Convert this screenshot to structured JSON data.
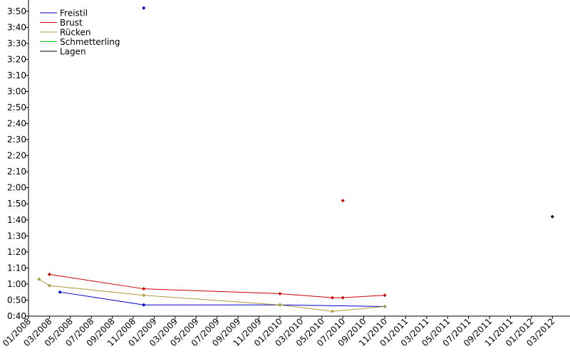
{
  "chart_data": {
    "type": "line",
    "x_format": "YYYY-MM",
    "xlim": [
      "2008-01",
      "2012-04"
    ],
    "xticks": [
      {
        "value": "2008-01",
        "label": "01/2008"
      },
      {
        "value": "2008-03",
        "label": "03/2008"
      },
      {
        "value": "2008-05",
        "label": "05/2008"
      },
      {
        "value": "2008-07",
        "label": "07/2008"
      },
      {
        "value": "2008-09",
        "label": "09/2008"
      },
      {
        "value": "2008-11",
        "label": "11/2008"
      },
      {
        "value": "2009-01",
        "label": "01/2009"
      },
      {
        "value": "2009-03",
        "label": "03/2009"
      },
      {
        "value": "2009-05",
        "label": "05/2009"
      },
      {
        "value": "2009-07",
        "label": "07/2009"
      },
      {
        "value": "2009-09",
        "label": "09/2009"
      },
      {
        "value": "2009-11",
        "label": "11/2009"
      },
      {
        "value": "2010-01",
        "label": "01/2010"
      },
      {
        "value": "2010-03",
        "label": "03/2010"
      },
      {
        "value": "2010-05",
        "label": "05/2010"
      },
      {
        "value": "2010-07",
        "label": "07/2010"
      },
      {
        "value": "2010-09",
        "label": "09/2010"
      },
      {
        "value": "2010-11",
        "label": "11/2010"
      },
      {
        "value": "2011-01",
        "label": "01/2011"
      },
      {
        "value": "2011-03",
        "label": "03/2011"
      },
      {
        "value": "2011-05",
        "label": "05/2011"
      },
      {
        "value": "2011-07",
        "label": "07/2011"
      },
      {
        "value": "2011-09",
        "label": "09/2011"
      },
      {
        "value": "2011-11",
        "label": "11/2011"
      },
      {
        "value": "2012-01",
        "label": "01/2012"
      },
      {
        "value": "2012-03",
        "label": "03/2012"
      }
    ],
    "ylim": [
      40,
      237
    ],
    "yticks": [
      {
        "value": 40,
        "label": "0:40"
      },
      {
        "value": 50,
        "label": "0:50"
      },
      {
        "value": 60,
        "label": "1:00"
      },
      {
        "value": 70,
        "label": "1:10"
      },
      {
        "value": 80,
        "label": "1:20"
      },
      {
        "value": 90,
        "label": "1:30"
      },
      {
        "value": 100,
        "label": "1:40"
      },
      {
        "value": 110,
        "label": "1:50"
      },
      {
        "value": 120,
        "label": "2:00"
      },
      {
        "value": 130,
        "label": "2:10"
      },
      {
        "value": 140,
        "label": "2:20"
      },
      {
        "value": 150,
        "label": "2:30"
      },
      {
        "value": 160,
        "label": "2:40"
      },
      {
        "value": 170,
        "label": "2:50"
      },
      {
        "value": 180,
        "label": "3:00"
      },
      {
        "value": 190,
        "label": "3:10"
      },
      {
        "value": 200,
        "label": "3:20"
      },
      {
        "value": 210,
        "label": "3:30"
      },
      {
        "value": 220,
        "label": "3:40"
      },
      {
        "value": 230,
        "label": "3:50"
      }
    ],
    "legend": "top-left",
    "series": [
      {
        "name": "Freistil",
        "color": "#0000cc",
        "x": [
          "2008-04",
          "2008-12",
          "2010-01",
          "2010-11"
        ],
        "values": [
          55,
          47,
          47,
          46
        ],
        "points": {
          "x": [
            "2008-12"
          ],
          "values": [
            232
          ]
        }
      },
      {
        "name": "Brust",
        "color": "#cc0000",
        "x": [
          "2008-03",
          "2008-12",
          "2010-01",
          "2010-06",
          "2010-07",
          "2010-11"
        ],
        "values": [
          66,
          57,
          54,
          51.5,
          51.5,
          53
        ],
        "points": {
          "x": [
            "2010-07"
          ],
          "values": [
            112
          ]
        }
      },
      {
        "name": "Rücken",
        "color": "#b09a3c",
        "x": [
          "2008-02",
          "2008-03",
          "2008-12",
          "2010-01",
          "2010-06",
          "2010-11"
        ],
        "values": [
          63,
          59,
          53,
          47,
          43,
          46
        ]
      },
      {
        "name": "Schmetterling",
        "color": "#00cc00",
        "x": [],
        "values": []
      },
      {
        "name": "Lagen",
        "color": "#000000",
        "x": [],
        "values": [],
        "points": {
          "x": [
            "2012-03"
          ],
          "values": [
            102
          ]
        }
      }
    ]
  }
}
